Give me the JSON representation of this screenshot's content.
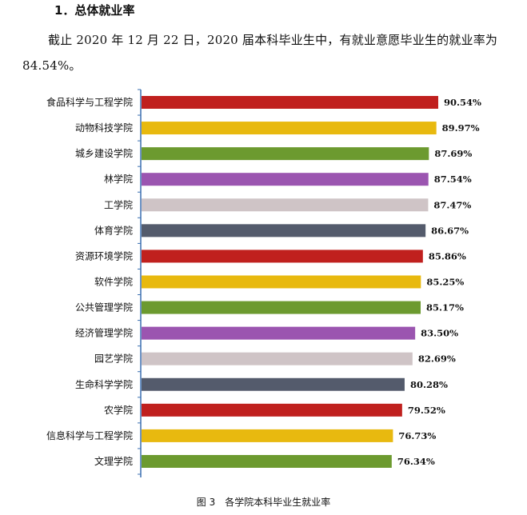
{
  "heading": "1．总体就业率",
  "intro_text": "截止 2020 年 12 月 22 日，2020 届本科毕业生中，有就业意愿毕业生的就业率为 84.54%。",
  "caption": "图 3　各学院本科毕业生就业率",
  "palette": [
    "#c0201e",
    "#e8b90f",
    "#6c9a2f",
    "#9b55b0",
    "#cfc4c6",
    "#545b6c"
  ],
  "axis_color": "#3a6fb0",
  "chart_data": {
    "type": "bar",
    "orientation": "horizontal",
    "title": "各学院本科毕业生就业率",
    "xlabel": "",
    "ylabel": "",
    "value_format": "percent",
    "xlim": [
      0,
      100
    ],
    "categories": [
      "食品科学与工程学院",
      "动物科技学院",
      "城乡建设学院",
      "林学院",
      "工学院",
      "体育学院",
      "资源环境学院",
      "软件学院",
      "公共管理学院",
      "经济管理学院",
      "园艺学院",
      "生命科学学院",
      "农学院",
      "信息科学与工程学院",
      "文理学院"
    ],
    "values": [
      90.54,
      89.97,
      87.69,
      87.54,
      87.47,
      86.67,
      85.86,
      85.25,
      85.17,
      83.5,
      82.69,
      80.28,
      79.52,
      76.73,
      76.34
    ],
    "labels": [
      "90.54%",
      "89.97%",
      "87.69%",
      "87.54%",
      "87.47%",
      "86.67%",
      "85.86%",
      "85.25%",
      "85.17%",
      "83.50%",
      "82.69%",
      "80.28%",
      "79.52%",
      "76.73%",
      "76.34%"
    ],
    "grid": false,
    "legend": "none"
  }
}
